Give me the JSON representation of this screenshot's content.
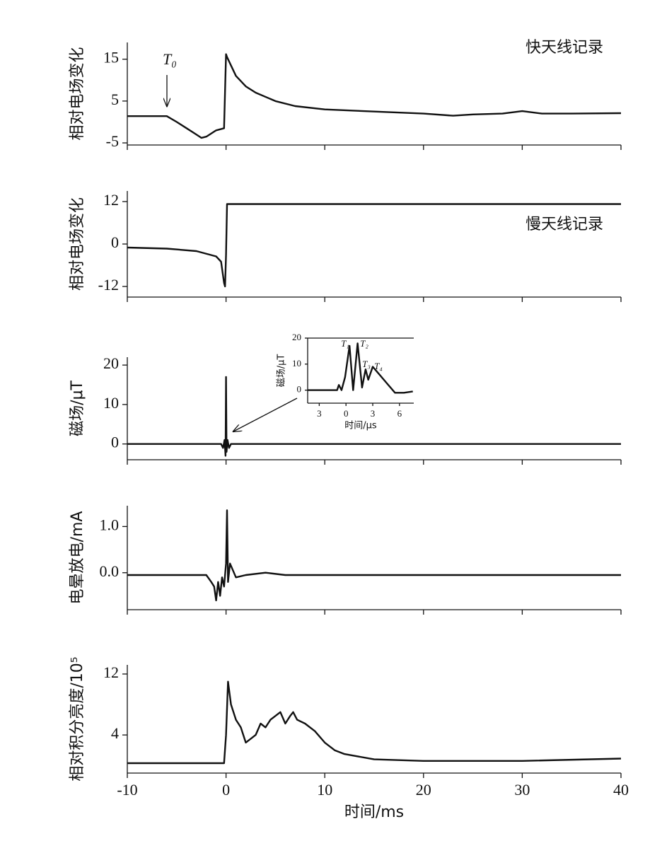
{
  "chart_data": [
    {
      "type": "line",
      "ylabel": "相对电场变化",
      "annotations": [
        "快天线记录",
        "T₀"
      ],
      "x": [
        -10,
        -6,
        -5,
        -4,
        -3,
        -2.5,
        -2,
        -1,
        -0.2,
        0,
        0.1,
        1,
        2,
        3,
        5,
        7,
        10,
        15,
        20,
        23,
        25,
        28,
        30,
        32,
        35,
        40
      ],
      "values": [
        1.4,
        1.4,
        0,
        -1.5,
        -3,
        -3.8,
        -3.5,
        -2,
        -1.5,
        16.2,
        15.5,
        11,
        8.5,
        7,
        5,
        3.8,
        3,
        2.5,
        2,
        1.5,
        1.8,
        2,
        2.6,
        2,
        2,
        2.1
      ],
      "xlim": [
        -10,
        40
      ],
      "xticks": [
        -10,
        0,
        10,
        20,
        30,
        40
      ],
      "ylim": [
        -5.5,
        19
      ],
      "yticks": [
        15,
        5,
        -5
      ]
    },
    {
      "type": "line",
      "ylabel": "相对电场变化",
      "annotations": [
        "慢天线记录"
      ],
      "x": [
        -10,
        -6,
        -3,
        -1,
        -0.5,
        -0.2,
        -0.1,
        0,
        0.1,
        40
      ],
      "values": [
        -1,
        -1.3,
        -2,
        -3.5,
        -5,
        -11,
        -12,
        -3,
        11.3,
        11.3
      ],
      "xlim": [
        -10,
        40
      ],
      "xticks": [
        -10,
        0,
        10,
        20,
        30,
        40
      ],
      "ylim": [
        -15,
        15
      ],
      "yticks": [
        12,
        0,
        -12
      ]
    },
    {
      "type": "line",
      "ylabel": "磁场/μT",
      "x": [
        -10,
        -0.5,
        -0.3,
        -0.15,
        -0.05,
        0,
        0.05,
        0.15,
        0.3,
        0.5,
        40
      ],
      "values": [
        0,
        0,
        -1,
        1,
        -3,
        17,
        -2,
        1,
        -1,
        0,
        0
      ],
      "xlim": [
        -10,
        40
      ],
      "xticks": [
        -10,
        0,
        10,
        20,
        30,
        40
      ],
      "ylim": [
        -4,
        22
      ],
      "yticks": [
        20,
        10,
        0
      ]
    },
    {
      "type": "line",
      "ylabel": "电晕放电/mA",
      "x": [
        -10,
        -2,
        -1.5,
        -1.2,
        -1,
        -0.8,
        -0.6,
        -0.4,
        -0.2,
        0,
        0.1,
        0.2,
        0.4,
        1,
        2,
        4,
        6,
        40
      ],
      "values": [
        -0.05,
        -0.05,
        -0.2,
        -0.3,
        -0.6,
        -0.2,
        -0.5,
        -0.1,
        -0.3,
        0.2,
        1.35,
        -0.2,
        0.2,
        -0.1,
        -0.05,
        0,
        -0.05,
        -0.05
      ],
      "xlim": [
        -10,
        40
      ],
      "xticks": [
        -10,
        0,
        10,
        20,
        30,
        40
      ],
      "ylim": [
        -0.8,
        1.45
      ],
      "yticks": [
        {
          "value": 1,
          "label": "1.0"
        },
        {
          "value": 0,
          "label": "0.0"
        }
      ]
    },
    {
      "type": "line",
      "ylabel": "相对积分亮度/10⁵",
      "xlabel": "时间/ms",
      "x": [
        -10,
        -0.2,
        0,
        0.2,
        0.5,
        1,
        1.5,
        2,
        3,
        3.5,
        4,
        4.5,
        5,
        5.5,
        6,
        6.5,
        6.8,
        7.2,
        8,
        9,
        10,
        11,
        12,
        15,
        20,
        30,
        40
      ],
      "values": [
        0.3,
        0.3,
        4,
        11,
        8,
        6,
        5,
        3,
        4,
        5.5,
        5,
        6,
        6.5,
        7,
        5.5,
        6.5,
        7,
        6,
        5.5,
        4.5,
        3,
        2,
        1.5,
        0.8,
        0.6,
        0.6,
        0.9
      ],
      "xlim": [
        -10,
        40
      ],
      "xticks": [
        -10,
        0,
        10,
        20,
        30,
        40
      ],
      "ylim": [
        -1,
        13.2
      ],
      "yticks": [
        12,
        4
      ]
    },
    {
      "type": "line",
      "ylabel": "磁场/μT",
      "xlabel": "时间/μs",
      "annotations": [
        "T₁",
        "T₂",
        "T₃",
        "T₄"
      ],
      "x": [
        -4.3,
        -1,
        -0.8,
        -0.5,
        -0.1,
        0.4,
        0.8,
        1.3,
        1.8,
        2.2,
        2.5,
        3,
        3.5,
        4.5,
        5.5,
        6.5,
        7.5
      ],
      "values": [
        0,
        0,
        2,
        0,
        5,
        17,
        0,
        18,
        1,
        8,
        4,
        9,
        7,
        3,
        -1,
        -1,
        -0.5
      ],
      "xlim": [
        -4.3,
        7.6
      ],
      "xticks": [
        {
          "value": -3,
          "label": "3"
        },
        0,
        3,
        6
      ],
      "ylim": [
        -5,
        20
      ],
      "yticks": [
        20,
        10,
        0
      ]
    }
  ]
}
